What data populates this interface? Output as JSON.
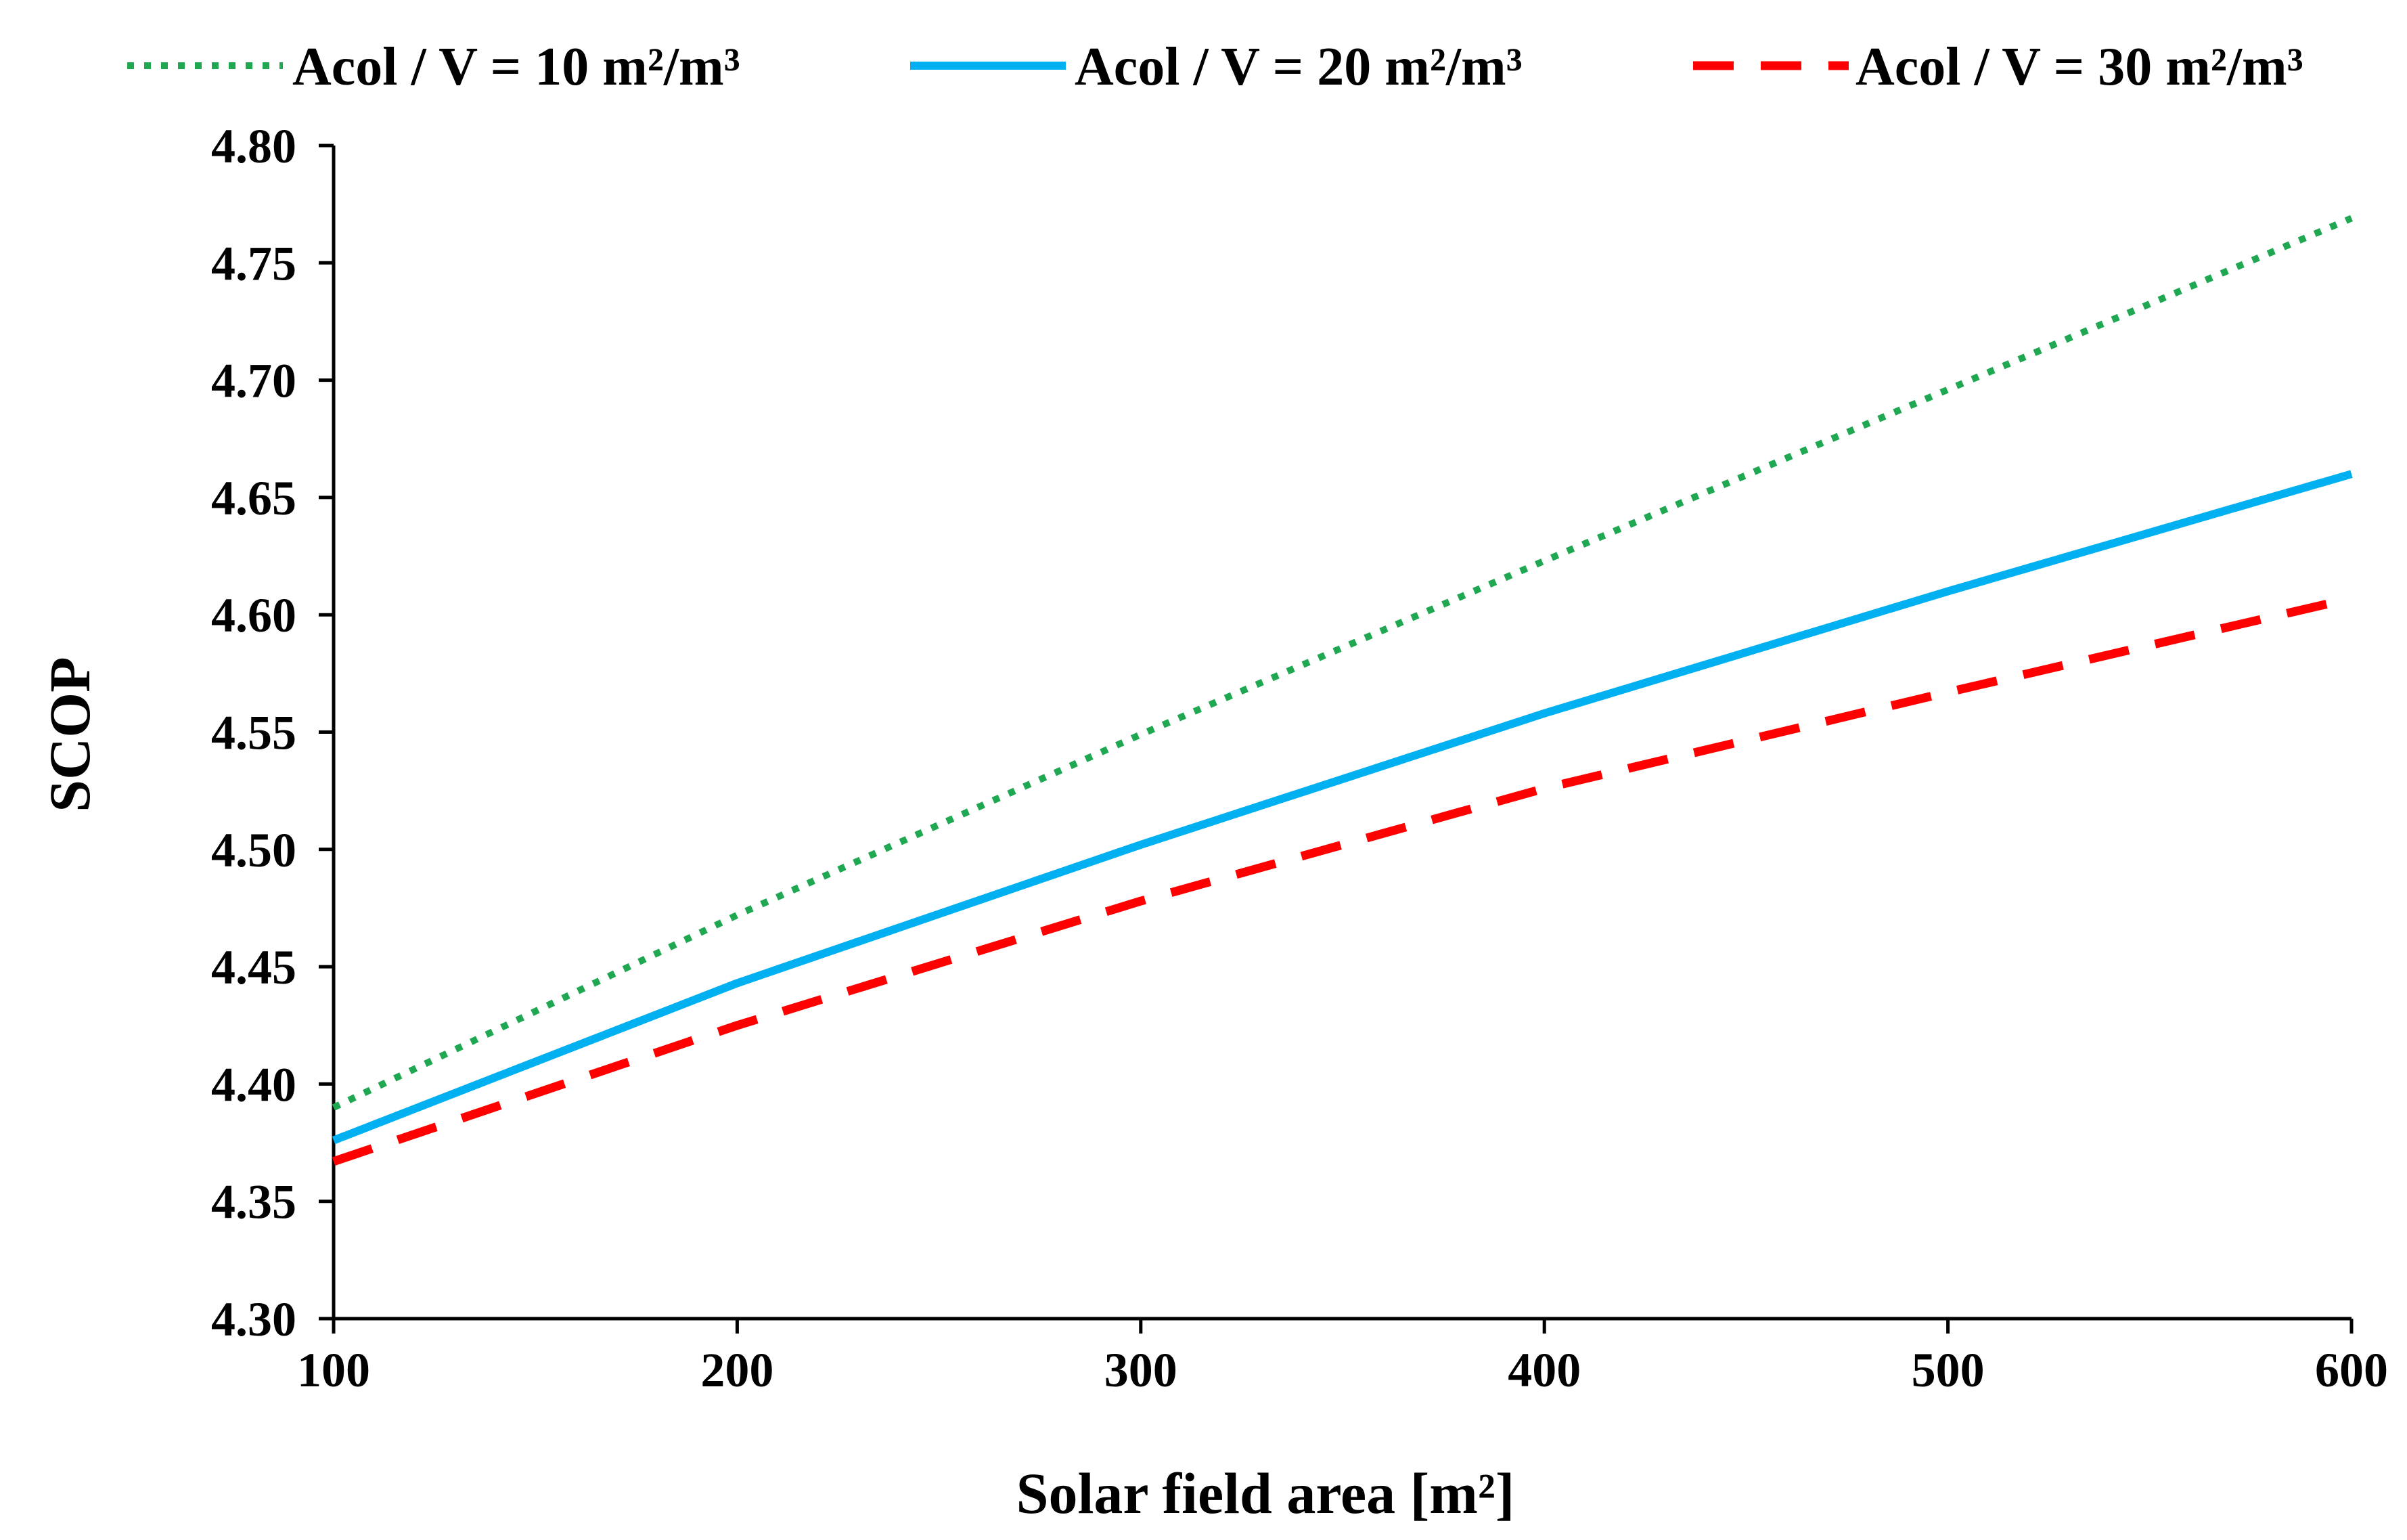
{
  "chart_data": {
    "type": "line",
    "title": "",
    "xlabel": "Solar field area [m²]",
    "ylabel": "SCOP",
    "x": [
      100,
      200,
      300,
      400,
      500,
      600
    ],
    "xlim": [
      100,
      600
    ],
    "ylim": [
      4.3,
      4.8
    ],
    "x_ticks": [
      100,
      200,
      300,
      400,
      500,
      600
    ],
    "x_tick_labels": [
      "100",
      "200",
      "300",
      "400",
      "500",
      "600"
    ],
    "y_ticks": [
      4.3,
      4.35,
      4.4,
      4.45,
      4.5,
      4.55,
      4.6,
      4.65,
      4.7,
      4.75,
      4.8
    ],
    "y_tick_labels": [
      "4.30",
      "4.35",
      "4.40",
      "4.45",
      "4.50",
      "4.55",
      "4.60",
      "4.65",
      "4.70",
      "4.75",
      "4.80"
    ],
    "grid": false,
    "legend_position": "top",
    "series": [
      {
        "name": "Acol / V = 10 m²/m³",
        "style": "dotted",
        "color": "#1fa851",
        "values": [
          4.39,
          4.472,
          4.549,
          4.623,
          4.696,
          4.769
        ]
      },
      {
        "name": "Acol / V = 20 m²/m³",
        "style": "solid",
        "color": "#00b0f0",
        "values": [
          4.376,
          4.443,
          4.502,
          4.558,
          4.61,
          4.66
        ]
      },
      {
        "name": "Acol / V = 30 m²/m³",
        "style": "dashed",
        "color": "#ff0000",
        "values": [
          4.367,
          4.425,
          4.478,
          4.526,
          4.567,
          4.607
        ]
      }
    ]
  }
}
